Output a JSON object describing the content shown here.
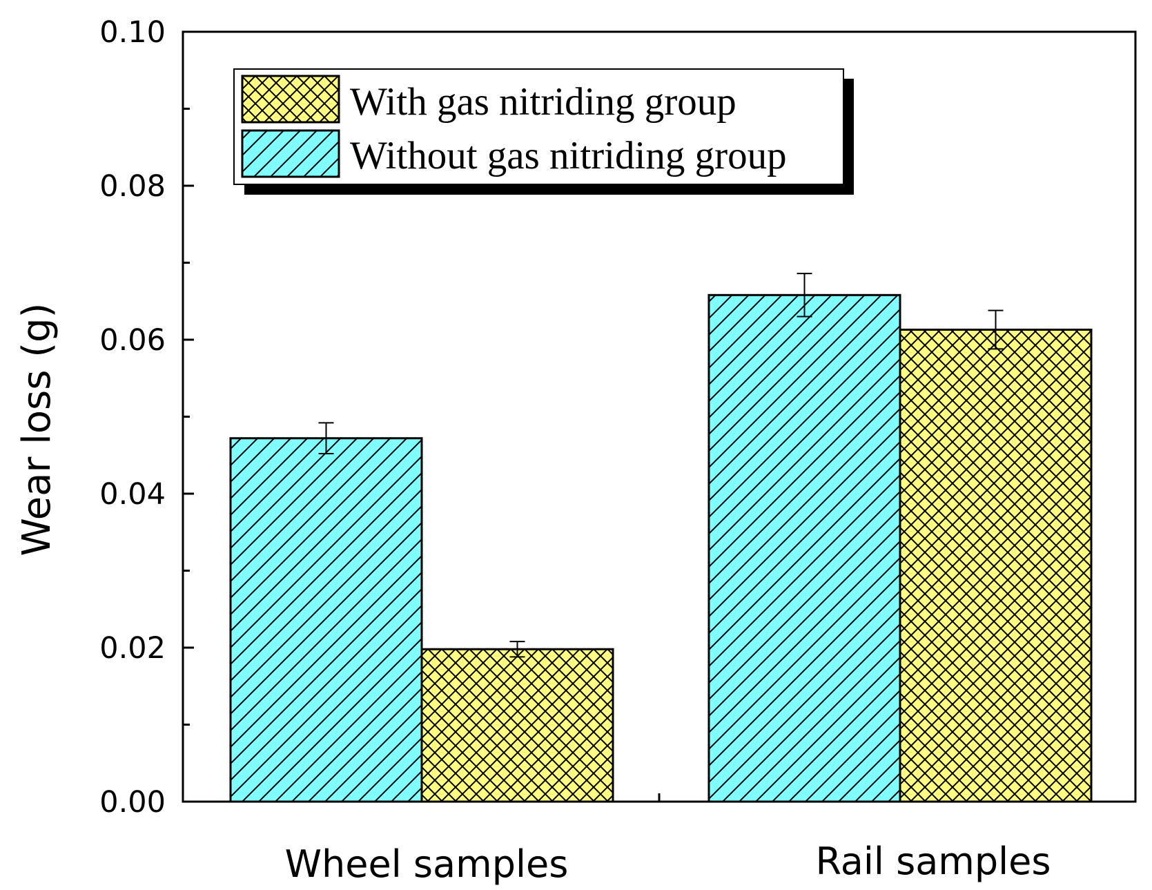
{
  "chart_data": {
    "type": "bar",
    "title": "",
    "xlabel": "",
    "ylabel": "Wear loss (g)",
    "categories": [
      "Wheel samples",
      "Rail samples"
    ],
    "ylim": [
      0.0,
      0.1
    ],
    "yticks": [
      "0.00",
      "0.02",
      "0.04",
      "0.06",
      "0.08",
      "0.10"
    ],
    "ytick_values": [
      0.0,
      0.02,
      0.04,
      0.06,
      0.08,
      0.1
    ],
    "grid": false,
    "legend_position": "top-left",
    "series": [
      {
        "name": "Without gas nitriding group",
        "color": "#80ffff",
        "pattern": "diagonal-lines",
        "values": [
          0.0472,
          0.0658
        ],
        "errors": [
          0.002,
          0.0028
        ]
      },
      {
        "name": "With gas nitriding group",
        "color": "#ffff80",
        "pattern": "cross-hatch",
        "values": [
          0.0198,
          0.0613
        ],
        "errors": [
          0.001,
          0.0025
        ]
      }
    ],
    "legend_order": [
      "With gas nitriding group",
      "Without gas nitriding group"
    ]
  }
}
